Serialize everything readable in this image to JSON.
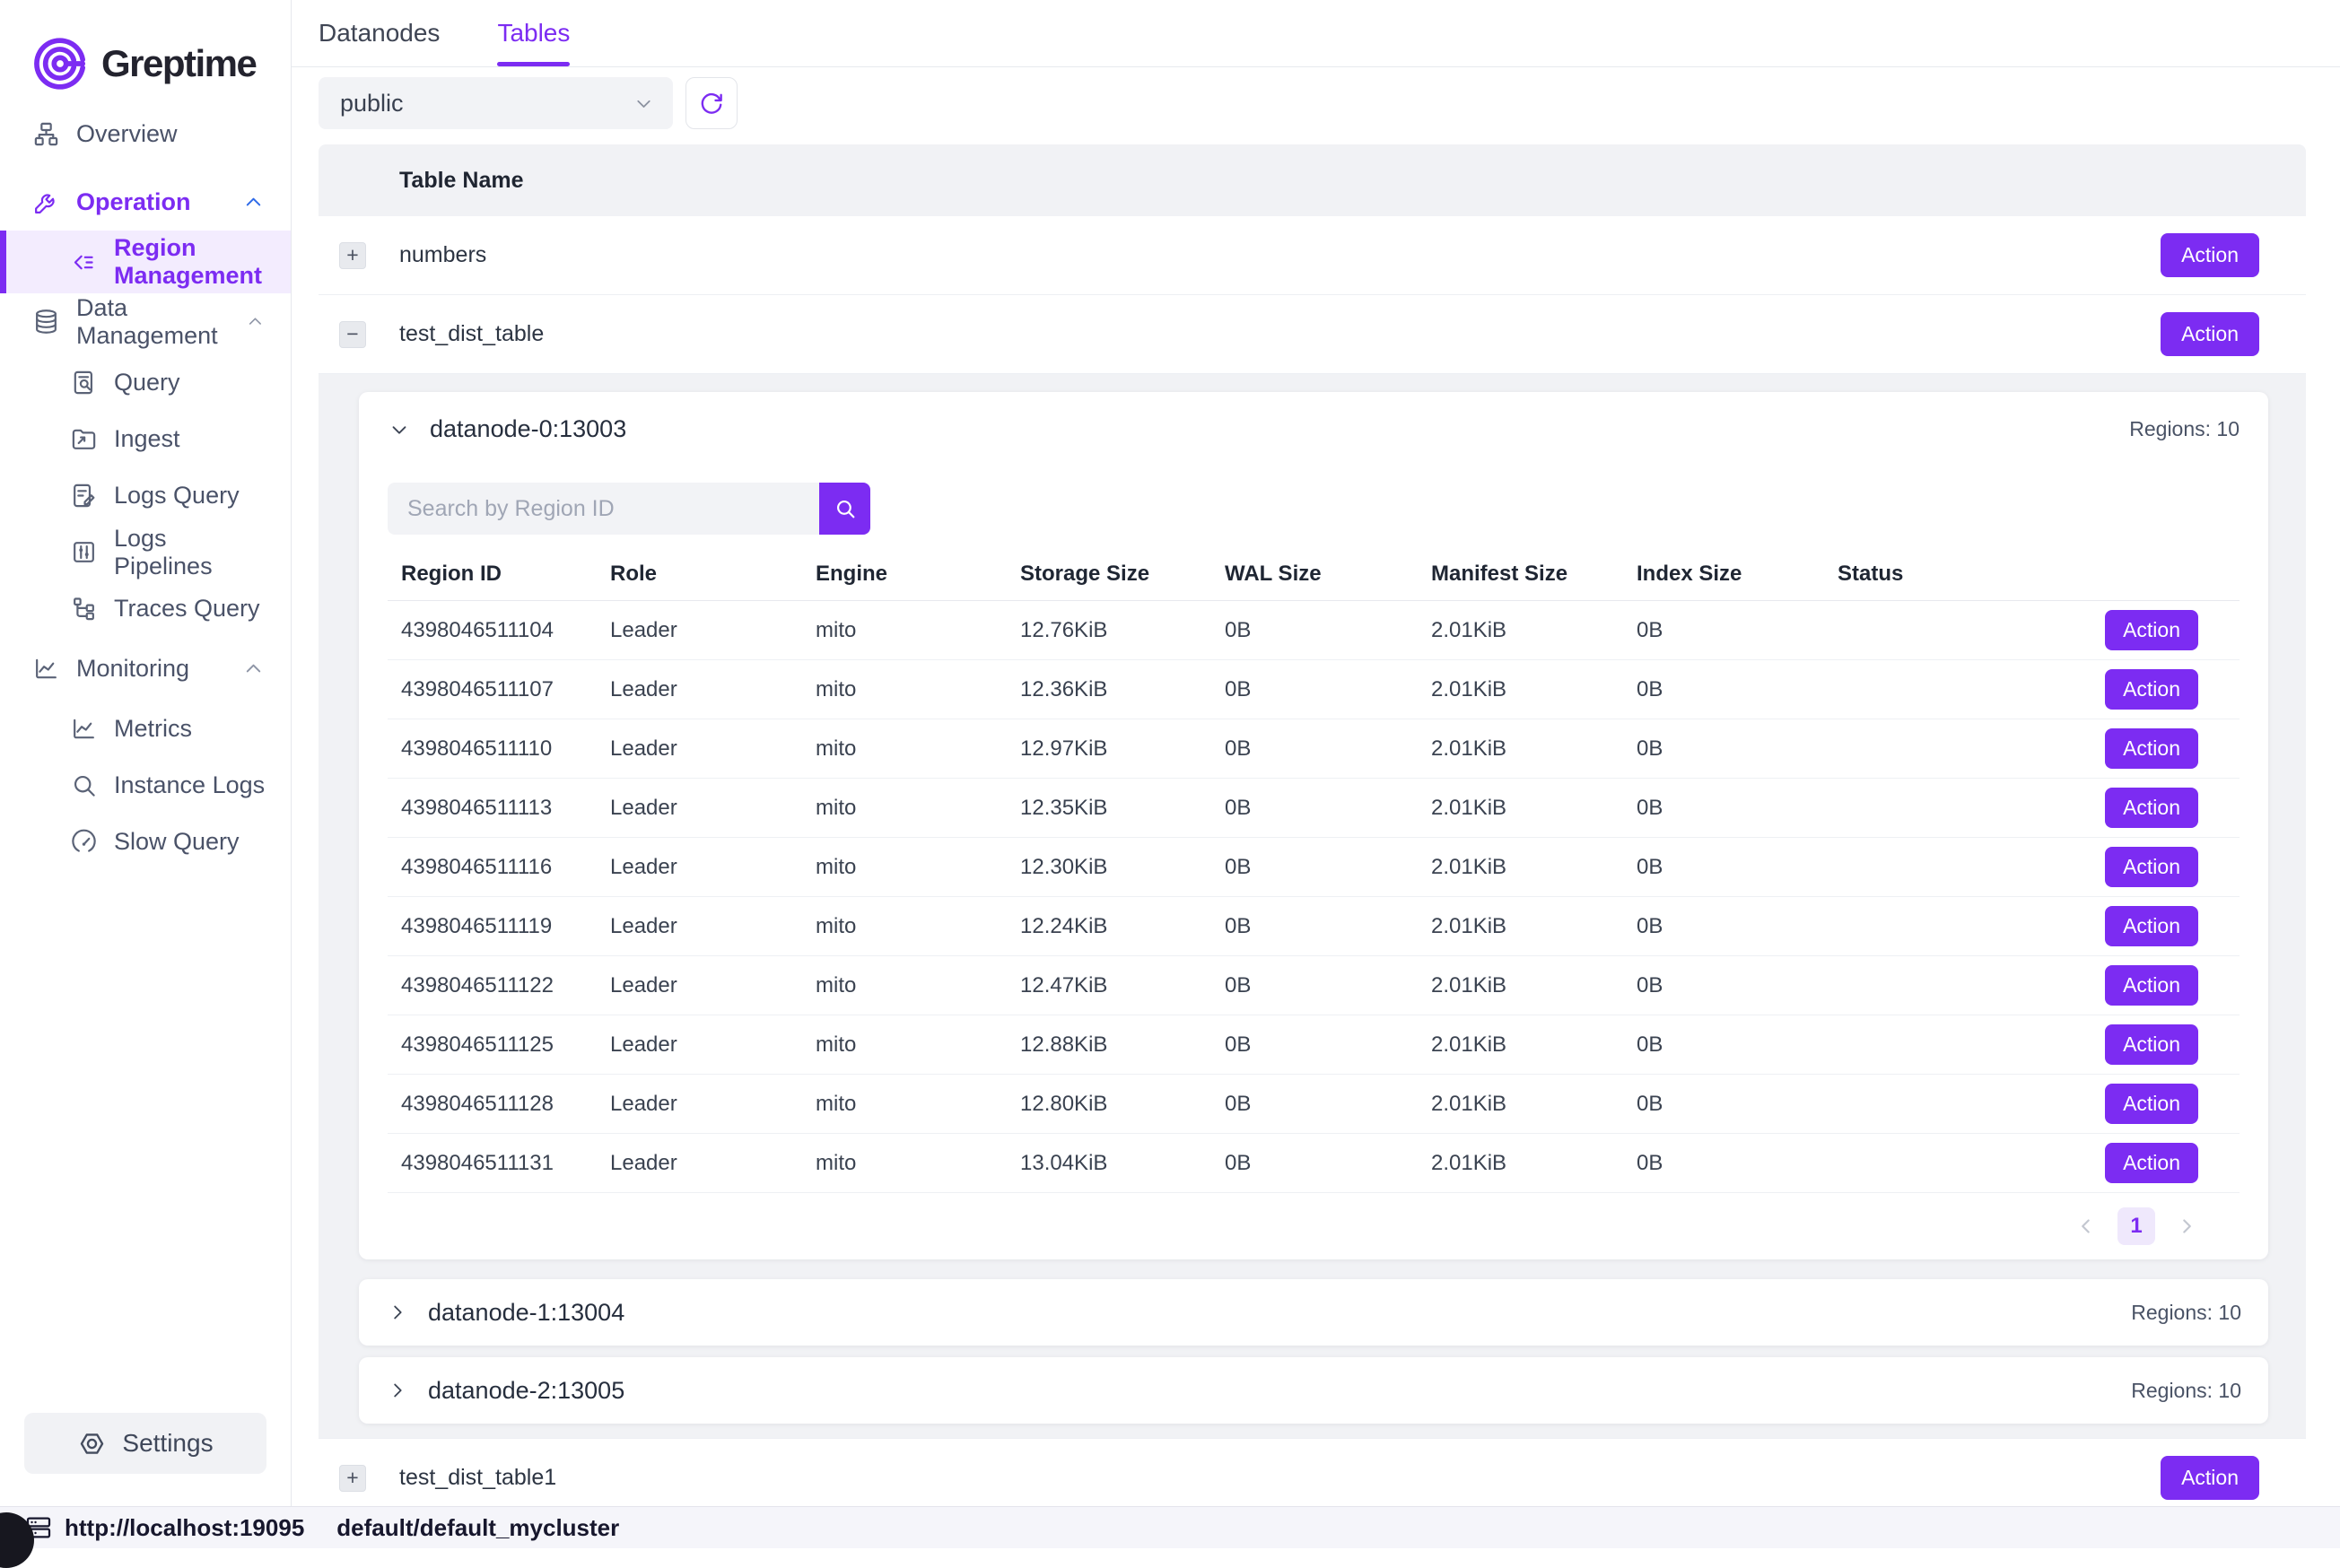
{
  "brand": {
    "name": "Greptime"
  },
  "sidebar": {
    "nav": [
      {
        "label": "Overview",
        "icon": "overview",
        "level": 0
      },
      {
        "label": "Operation",
        "icon": "wrench",
        "level": 0,
        "active": true,
        "chevron": "up",
        "chevron_color": "blue"
      },
      {
        "label": "Region Management",
        "icon": "region-list",
        "level": 1,
        "active": true,
        "selected": true
      },
      {
        "label": "Data Management",
        "icon": "database",
        "level": 0,
        "chevron": "up"
      },
      {
        "label": "Query",
        "icon": "doc-search",
        "level": 1
      },
      {
        "label": "Ingest",
        "icon": "folder-in",
        "level": 1
      },
      {
        "label": "Logs Query",
        "icon": "doc-edit",
        "level": 1
      },
      {
        "label": "Logs Pipelines",
        "icon": "sliders",
        "level": 1
      },
      {
        "label": "Traces Query",
        "icon": "tree",
        "level": 1
      },
      {
        "label": "Monitoring",
        "icon": "chart-line",
        "level": 0,
        "chevron": "up"
      },
      {
        "label": "Metrics",
        "icon": "chart-line",
        "level": 1
      },
      {
        "label": "Instance Logs",
        "icon": "magnifier",
        "level": 1
      },
      {
        "label": "Slow Query",
        "icon": "gauge",
        "level": 1
      }
    ],
    "settings_label": "Settings"
  },
  "tabs": {
    "datanodes": "Datanodes",
    "tables": "Tables",
    "active": "Tables"
  },
  "controls": {
    "database_selected": "public",
    "refresh_icon": "refresh"
  },
  "tables_list": {
    "header": "Table Name",
    "action_label": "Action",
    "rows": [
      {
        "name": "numbers",
        "expand_symbol": "+",
        "expanded": false
      },
      {
        "name": "test_dist_table",
        "expand_symbol": "−",
        "expanded": true
      },
      {
        "name": "test_dist_table1",
        "expand_symbol": "+",
        "expanded": false
      }
    ]
  },
  "datanodes": [
    {
      "name": "datanode-0:13003",
      "regions": "Regions: 10",
      "expanded": true
    },
    {
      "name": "datanode-1:13004",
      "regions": "Regions: 10",
      "expanded": false
    },
    {
      "name": "datanode-2:13005",
      "regions": "Regions: 10",
      "expanded": false
    }
  ],
  "region_table": {
    "search_placeholder": "Search by Region ID",
    "search_icon": "magnifier",
    "columns": [
      "Region ID",
      "Role",
      "Engine",
      "Storage Size",
      "WAL Size",
      "Manifest Size",
      "Index Size",
      "Status"
    ],
    "action_label": "Action",
    "rows": [
      [
        "4398046511104",
        "Leader",
        "mito",
        "12.76KiB",
        "0B",
        "2.01KiB",
        "0B",
        ""
      ],
      [
        "4398046511107",
        "Leader",
        "mito",
        "12.36KiB",
        "0B",
        "2.01KiB",
        "0B",
        ""
      ],
      [
        "4398046511110",
        "Leader",
        "mito",
        "12.97KiB",
        "0B",
        "2.01KiB",
        "0B",
        ""
      ],
      [
        "4398046511113",
        "Leader",
        "mito",
        "12.35KiB",
        "0B",
        "2.01KiB",
        "0B",
        ""
      ],
      [
        "4398046511116",
        "Leader",
        "mito",
        "12.30KiB",
        "0B",
        "2.01KiB",
        "0B",
        ""
      ],
      [
        "4398046511119",
        "Leader",
        "mito",
        "12.24KiB",
        "0B",
        "2.01KiB",
        "0B",
        ""
      ],
      [
        "4398046511122",
        "Leader",
        "mito",
        "12.47KiB",
        "0B",
        "2.01KiB",
        "0B",
        ""
      ],
      [
        "4398046511125",
        "Leader",
        "mito",
        "12.88KiB",
        "0B",
        "2.01KiB",
        "0B",
        ""
      ],
      [
        "4398046511128",
        "Leader",
        "mito",
        "12.80KiB",
        "0B",
        "2.01KiB",
        "0B",
        ""
      ],
      [
        "4398046511131",
        "Leader",
        "mito",
        "13.04KiB",
        "0B",
        "2.01KiB",
        "0B",
        ""
      ]
    ],
    "pagination": {
      "current": "1"
    }
  },
  "status_bar": {
    "url": "http://localhost:19095",
    "cluster": "default/default_mycluster",
    "icon": "server-stack"
  },
  "colors": {
    "accent": "#7c2cf2",
    "accent_soft_bg": "#f3ecfe",
    "active_chevron_blue": "#2e6ae8",
    "panel_gray": "#f1f2f5",
    "pagination_bg": "#efe8fc",
    "status_bar_bg": "#f5f5fa",
    "status_text": "#17172d"
  }
}
